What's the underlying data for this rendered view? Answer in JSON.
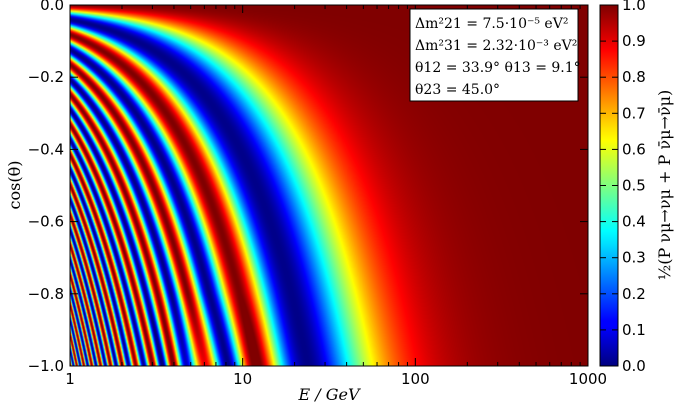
{
  "chart_data": {
    "type": "heatmap",
    "xlabel": "E / GeV",
    "ylabel": "cos(θ)",
    "xscale": "log",
    "xlim": [
      1,
      1000
    ],
    "ylim": [
      -1.0,
      0.0
    ],
    "x_ticks": [
      {
        "value": 1,
        "label": "1"
      },
      {
        "value": 10,
        "label": "10"
      },
      {
        "value": 100,
        "label": "100"
      },
      {
        "value": 1000,
        "label": "1000"
      }
    ],
    "y_ticks": [
      {
        "value": 0.0,
        "label": "0.0"
      },
      {
        "value": -0.2,
        "label": "−0.2"
      },
      {
        "value": -0.4,
        "label": "−0.4"
      },
      {
        "value": -0.6,
        "label": "−0.6"
      },
      {
        "value": -0.8,
        "label": "−0.8"
      },
      {
        "value": -1.0,
        "label": "−1.0"
      }
    ],
    "colorbar": {
      "label": "½(P νμ→νμ + P ν̄μ→ν̄μ)",
      "range": [
        0.0,
        1.0
      ],
      "colormap": "jet",
      "ticks": [
        {
          "value": 0.0,
          "label": "0.0"
        },
        {
          "value": 0.1,
          "label": "0.1"
        },
        {
          "value": 0.2,
          "label": "0.2"
        },
        {
          "value": 0.3,
          "label": "0.3"
        },
        {
          "value": 0.4,
          "label": "0.4"
        },
        {
          "value": 0.5,
          "label": "0.5"
        },
        {
          "value": 0.6,
          "label": "0.6"
        },
        {
          "value": 0.7,
          "label": "0.7"
        },
        {
          "value": 0.8,
          "label": "0.8"
        },
        {
          "value": 0.9,
          "label": "0.9"
        },
        {
          "value": 1.0,
          "label": "1.0"
        }
      ]
    },
    "parameters": [
      {
        "name": "Δm²21",
        "value": "7.5·10⁻⁵ eV²"
      },
      {
        "name": "Δm²31",
        "value": "2.32·10⁻³ eV²"
      },
      {
        "name": "θ12",
        "value": "33.9°"
      },
      {
        "name": "θ13",
        "value": "9.1°"
      },
      {
        "name": "θ23",
        "value": "45.0°"
      }
    ]
  },
  "legend": {
    "line1": "Δm²21 = 7.5·10⁻⁵ eV²",
    "line2": "Δm²31 = 2.32·10⁻³ eV²",
    "line3": "θ12 = 33.9°    θ13 = 9.1°",
    "line4": "θ23 = 45.0°"
  }
}
